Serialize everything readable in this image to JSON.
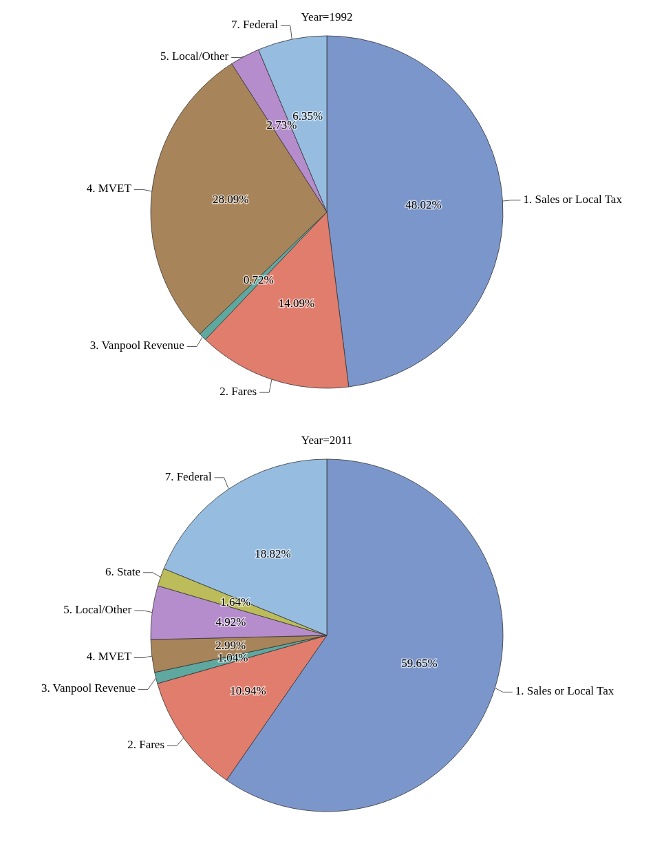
{
  "chart_data": [
    {
      "type": "pie",
      "title": "Year=1992",
      "categories": [
        "1. Sales or Local Tax",
        "2. Fares",
        "3. Vanpool Revenue",
        "4. MVET",
        "5. Local/Other",
        "7. Federal"
      ],
      "values": [
        48.02,
        14.09,
        0.72,
        28.09,
        2.73,
        6.35
      ],
      "colors": [
        "#7b96cb",
        "#e07d6d",
        "#5fa8a0",
        "#a8845a",
        "#b58ccc",
        "#96bce0"
      ],
      "value_labels": [
        "48.02%",
        "14.09%",
        "0.72%",
        "28.09%",
        "2.73%",
        "6.35%"
      ]
    },
    {
      "type": "pie",
      "title": "Year=2011",
      "categories": [
        "1. Sales or Local Tax",
        "2. Fares",
        "3. Vanpool Revenue",
        "4. MVET",
        "5. Local/Other",
        "6. State",
        "7. Federal"
      ],
      "values": [
        59.65,
        10.94,
        1.04,
        2.99,
        4.92,
        1.64,
        18.82
      ],
      "colors": [
        "#7b96cb",
        "#e07d6d",
        "#5fa8a0",
        "#a8845a",
        "#b58ccc",
        "#bcbc5a",
        "#96bce0"
      ],
      "value_labels": [
        "59.65%",
        "10.94%",
        "1.04%",
        "2.99%",
        "4.92%",
        "1.64%",
        "18.82%"
      ]
    }
  ]
}
